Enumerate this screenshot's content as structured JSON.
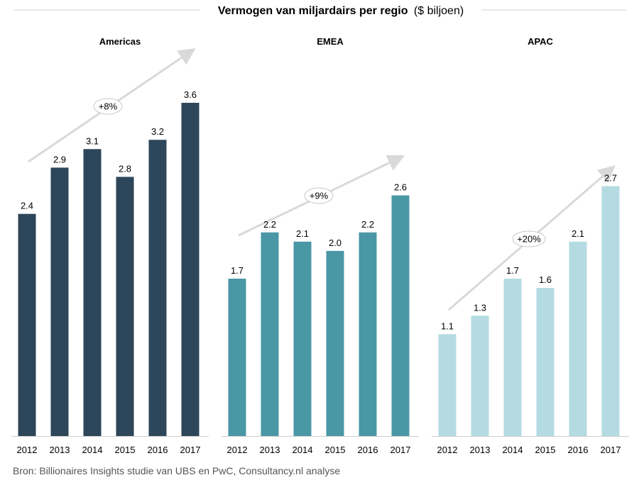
{
  "title": {
    "bold": "Vermogen van miljardairs per regio",
    "normal": "($ biljoen)"
  },
  "source": "Bron: Billionaires Insights studie van UBS en PwC, Consultancy.nl analyse",
  "chart_data": [
    {
      "type": "bar",
      "title": "Americas",
      "categories": [
        "2012",
        "2013",
        "2014",
        "2015",
        "2016",
        "2017"
      ],
      "values": [
        2.4,
        2.9,
        3.1,
        2.8,
        3.2,
        3.6
      ],
      "ylim": [
        0,
        3.6
      ],
      "color": "#2d465a",
      "growth_label": "+8%"
    },
    {
      "type": "bar",
      "title": "EMEA",
      "categories": [
        "2012",
        "2013",
        "2014",
        "2015",
        "2016",
        "2017"
      ],
      "values": [
        1.7,
        2.2,
        2.1,
        2.0,
        2.2,
        2.6
      ],
      "ylim": [
        0,
        3.6
      ],
      "color": "#4a97a6",
      "growth_label": "+9%"
    },
    {
      "type": "bar",
      "title": "APAC",
      "categories": [
        "2012",
        "2013",
        "2014",
        "2015",
        "2016",
        "2017"
      ],
      "values": [
        1.1,
        1.3,
        1.7,
        1.6,
        2.1,
        2.7
      ],
      "ylim": [
        0,
        3.6
      ],
      "color": "#b4dbe1",
      "growth_label": "+20%"
    }
  ],
  "colors": {
    "axis": "#d0d0d0",
    "arrow": "#d9d9d9",
    "text": "#000000"
  }
}
